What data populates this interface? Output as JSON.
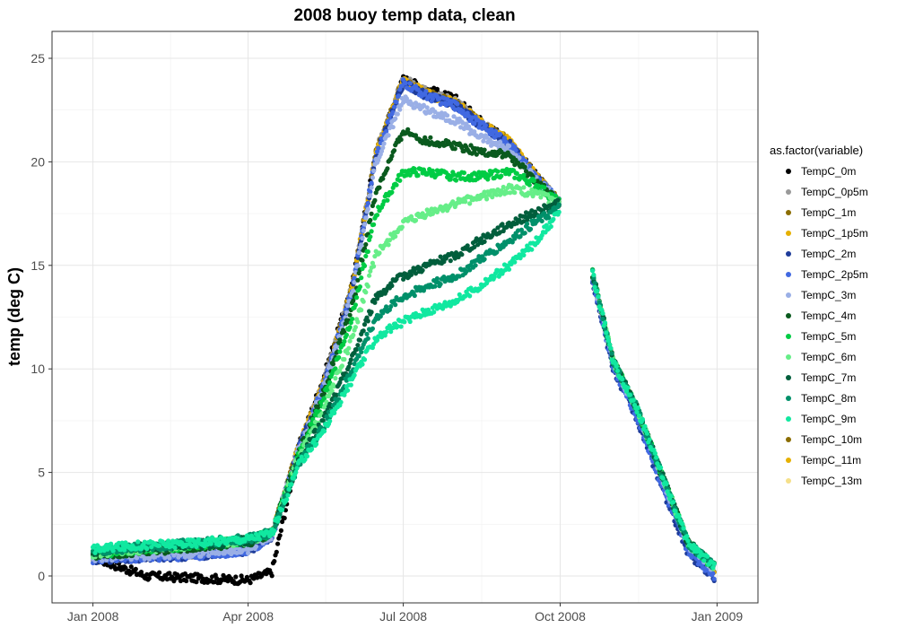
{
  "chart_data": {
    "type": "scatter",
    "title": "2008 buoy temp data, clean",
    "xlabel": "",
    "ylabel": "temp (deg C)",
    "x_ticks": [
      "Jan 2008",
      "Apr 2008",
      "Jul 2008",
      "Oct 2008",
      "Jan 2009"
    ],
    "x_tick_dates": [
      "2008-01-01",
      "2008-04-01",
      "2008-07-01",
      "2008-10-01",
      "2009-01-01"
    ],
    "xlim": [
      "2007-12-08",
      "2009-01-25"
    ],
    "y_ticks": [
      0,
      5,
      10,
      15,
      20,
      25
    ],
    "ylim": [
      -1.3,
      26.3
    ],
    "grid": true,
    "legend_title": "as.factor(variable)",
    "legend_position": "right",
    "x_series": [
      "2008-01-01",
      "2008-02-01",
      "2008-03-01",
      "2008-04-01",
      "2008-04-15",
      "2008-05-01",
      "2008-05-15",
      "2008-06-01",
      "2008-06-15",
      "2008-07-01",
      "2008-07-15",
      "2008-08-01",
      "2008-08-15",
      "2008-09-01",
      "2008-09-15",
      "2008-10-01",
      "2008-10-07",
      "2008-10-20",
      "2008-11-01",
      "2008-11-15",
      "2008-12-01",
      "2008-12-15",
      "2008-12-31"
    ],
    "series": [
      {
        "name": "TempC_0m",
        "color": "#000000",
        "values": [
          0.9,
          0.0,
          -0.1,
          -0.2,
          0.2,
          6.3,
          9.5,
          14.0,
          20.5,
          24.0,
          23.5,
          23.0,
          22.0,
          21.0,
          19.5,
          18.0,
          null,
          14.5,
          10.3,
          8.0,
          4.5,
          1.5,
          0.3
        ]
      },
      {
        "name": "TempC_0p5m",
        "color": "#999999",
        "values": [
          0.9,
          1.0,
          1.1,
          1.3,
          2.0,
          6.3,
          9.3,
          14.0,
          20.5,
          24.0,
          23.4,
          22.9,
          21.9,
          21.0,
          19.5,
          18.0,
          null,
          14.5,
          10.3,
          8.0,
          4.5,
          1.5,
          0.3
        ]
      },
      {
        "name": "TempC_1m",
        "color": "#8B6D00",
        "values": [
          0.9,
          1.0,
          1.1,
          1.3,
          2.0,
          6.3,
          9.2,
          14.0,
          20.4,
          24.0,
          23.3,
          22.8,
          21.9,
          21.0,
          19.5,
          18.0,
          null,
          14.5,
          10.3,
          8.0,
          4.5,
          1.5,
          0.3
        ]
      },
      {
        "name": "TempC_1p5m",
        "color": "#E6B000",
        "values": [
          0.9,
          1.0,
          1.1,
          1.3,
          2.0,
          6.3,
          9.2,
          13.9,
          20.4,
          23.9,
          23.3,
          22.8,
          21.9,
          21.0,
          19.5,
          18.0,
          null,
          14.5,
          10.3,
          8.0,
          4.5,
          1.5,
          0.3
        ]
      },
      {
        "name": "TempC_2m",
        "color": "#1E3C9A",
        "values": [
          0.8,
          0.9,
          1.0,
          1.2,
          1.9,
          6.2,
          9.1,
          13.8,
          20.3,
          23.8,
          23.2,
          22.7,
          21.8,
          20.9,
          19.4,
          18.0,
          null,
          14.3,
          10.0,
          7.6,
          4.0,
          1.1,
          -0.1
        ]
      },
      {
        "name": "TempC_2p5m",
        "color": "#4169E1",
        "values": [
          0.8,
          0.9,
          1.0,
          1.2,
          1.9,
          6.2,
          9.1,
          13.8,
          20.3,
          23.8,
          23.2,
          22.7,
          21.8,
          20.9,
          19.4,
          18.0,
          null,
          14.4,
          10.1,
          7.7,
          4.1,
          1.2,
          0.0
        ]
      },
      {
        "name": "TempC_3m",
        "color": "#9AAFE6",
        "values": [
          0.9,
          1.0,
          1.1,
          1.3,
          2.0,
          6.2,
          9.0,
          13.6,
          20.0,
          23.0,
          22.5,
          22.0,
          21.2,
          20.6,
          19.3,
          18.0,
          null,
          14.5,
          10.3,
          8.0,
          4.5,
          1.5,
          0.3
        ]
      },
      {
        "name": "TempC_4m",
        "color": "#0A5A1E",
        "values": [
          1.0,
          1.2,
          1.4,
          1.6,
          2.1,
          6.0,
          8.8,
          13.0,
          18.5,
          21.5,
          21.0,
          20.8,
          20.5,
          20.3,
          19.2,
          18.0,
          null,
          14.6,
          10.4,
          8.1,
          4.6,
          1.6,
          0.4
        ]
      },
      {
        "name": "TempC_5m",
        "color": "#00CC44",
        "values": [
          1.1,
          1.3,
          1.5,
          1.7,
          2.1,
          5.9,
          8.5,
          12.5,
          17.5,
          19.5,
          19.5,
          19.3,
          19.3,
          19.5,
          19.0,
          18.0,
          null,
          14.6,
          10.4,
          8.1,
          4.6,
          1.6,
          0.4
        ]
      },
      {
        "name": "TempC_6m",
        "color": "#66EE88",
        "values": [
          1.1,
          1.3,
          1.5,
          1.7,
          2.1,
          5.8,
          8.0,
          11.5,
          15.5,
          17.0,
          17.5,
          18.0,
          18.3,
          18.7,
          18.5,
          18.0,
          null,
          14.6,
          10.4,
          8.1,
          4.6,
          1.6,
          0.4
        ]
      },
      {
        "name": "TempC_7m",
        "color": "#005E3C",
        "values": [
          1.2,
          1.4,
          1.5,
          1.7,
          2.1,
          5.6,
          7.5,
          10.5,
          13.5,
          14.5,
          15.0,
          15.5,
          16.2,
          17.0,
          17.5,
          18.0,
          null,
          14.6,
          10.4,
          8.1,
          4.6,
          1.6,
          0.4
        ]
      },
      {
        "name": "TempC_8m",
        "color": "#00906A",
        "values": [
          1.2,
          1.4,
          1.6,
          1.8,
          2.1,
          5.5,
          7.2,
          10.0,
          12.5,
          13.5,
          14.0,
          14.5,
          15.3,
          16.2,
          17.0,
          17.8,
          null,
          14.6,
          10.4,
          8.1,
          4.6,
          1.6,
          0.4
        ]
      },
      {
        "name": "TempC_9m",
        "color": "#11E8A0",
        "values": [
          1.3,
          1.5,
          1.6,
          1.8,
          2.1,
          5.4,
          7.0,
          9.5,
          11.5,
          12.3,
          12.8,
          13.3,
          14.0,
          15.0,
          16.0,
          17.6,
          null,
          14.6,
          10.4,
          8.1,
          4.6,
          1.6,
          0.4
        ]
      },
      {
        "name": "TempC_10m",
        "color": "#8B6D00",
        "values": []
      },
      {
        "name": "TempC_11m",
        "color": "#E6B000",
        "values": []
      },
      {
        "name": "TempC_13m",
        "color": "#F5E08A",
        "values": []
      }
    ]
  }
}
